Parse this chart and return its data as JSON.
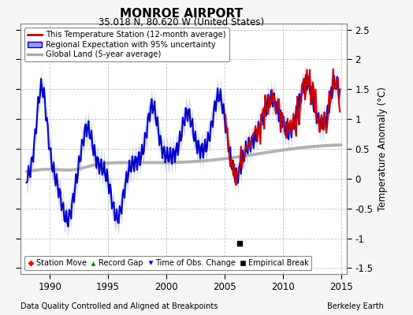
{
  "title": "MONROE AIRPORT",
  "subtitle": "35.018 N, 80.620 W (United States)",
  "ylabel": "Temperature Anomaly (°C)",
  "xlabel_left": "Data Quality Controlled and Aligned at Breakpoints",
  "xlabel_right": "Berkeley Earth",
  "ylim": [
    -1.6,
    2.6
  ],
  "xlim": [
    1987.5,
    2015.5
  ],
  "xticks": [
    1990,
    1995,
    2000,
    2005,
    2010,
    2015
  ],
  "yticks": [
    -1.5,
    -1.0,
    -0.5,
    0.0,
    0.5,
    1.0,
    1.5,
    2.0,
    2.5
  ],
  "ytick_labels": [
    "-1.5",
    "-1",
    "-0.5",
    "0",
    "0.5",
    "1",
    "1.5",
    "2",
    "2.5"
  ],
  "grid_color": "#bbbbbb",
  "bg_color": "#f5f5f5",
  "plot_bg_color": "#ffffff",
  "station_color": "#cc0000",
  "regional_color": "#0000cc",
  "regional_fill": "#9999dd",
  "global_color": "#aaaaaa",
  "empirical_break_year": 2006.3,
  "empirical_break_value": -1.08,
  "legend_labels": [
    "This Temperature Station (12-month average)",
    "Regional Expectation with 95% uncertainty",
    "Global Land (5-year average)"
  ],
  "marker_legend": [
    "Station Move",
    "Record Gap",
    "Time of Obs. Change",
    "Empirical Break"
  ]
}
